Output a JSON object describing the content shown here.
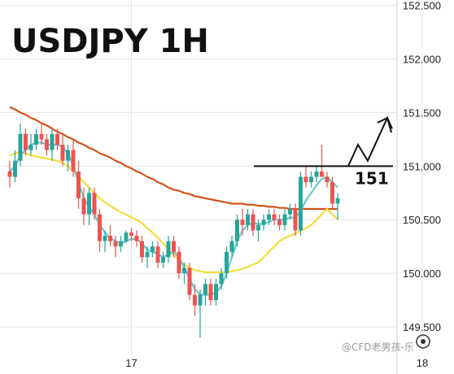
{
  "chart_data": {
    "type": "candlestick",
    "title": "USDJPY 1H",
    "y_ticks": [
      "152.500",
      "152.000",
      "151.500",
      "151.000",
      "150.500",
      "150.000",
      "149.500"
    ],
    "y_tick_values": [
      152.5,
      152.0,
      151.5,
      151.0,
      150.5,
      150.0,
      149.5
    ],
    "ylim": [
      149.25,
      152.55
    ],
    "x_ticks": [
      "17",
      "18"
    ],
    "x_tick_index": [
      23,
      78
    ],
    "grid": true,
    "colors": {
      "up": "#26a69a",
      "down": "#ef5350",
      "ma_fast": "#6cc8d0",
      "ma_mid": "#f5dc3c",
      "ma_slow": "#d2531a",
      "level": "#111111"
    },
    "level_value": 151.0,
    "level_label": "151",
    "projection_path": [
      [
        151.0,
        0
      ],
      [
        151.2,
        6
      ],
      [
        151.05,
        12
      ],
      [
        151.45,
        24
      ],
      [
        151.35,
        27
      ]
    ],
    "candles": [
      [
        150.95,
        151.05,
        150.8,
        150.9
      ],
      [
        150.9,
        151.15,
        150.85,
        151.05
      ],
      [
        151.05,
        151.4,
        151.0,
        151.3
      ],
      [
        151.3,
        151.35,
        151.1,
        151.15
      ],
      [
        151.15,
        151.3,
        151.1,
        151.2
      ],
      [
        151.2,
        151.35,
        151.15,
        151.3
      ],
      [
        151.3,
        151.4,
        151.2,
        151.25
      ],
      [
        151.25,
        151.3,
        151.1,
        151.15
      ],
      [
        151.15,
        151.35,
        151.05,
        151.3
      ],
      [
        151.3,
        151.35,
        151.15,
        151.2
      ],
      [
        151.2,
        151.3,
        151.0,
        151.05
      ],
      [
        151.05,
        151.2,
        150.95,
        151.15
      ],
      [
        151.15,
        151.25,
        150.9,
        150.95
      ],
      [
        150.95,
        151.05,
        150.6,
        150.7
      ],
      [
        150.7,
        150.8,
        150.45,
        150.55
      ],
      [
        150.55,
        150.8,
        150.45,
        150.75
      ],
      [
        150.75,
        150.8,
        150.5,
        150.55
      ],
      [
        150.55,
        150.6,
        150.2,
        150.3
      ],
      [
        150.3,
        150.4,
        150.2,
        150.35
      ],
      [
        150.35,
        150.45,
        150.25,
        150.3
      ],
      [
        150.3,
        150.35,
        150.15,
        150.25
      ],
      [
        150.25,
        150.35,
        150.2,
        150.3
      ],
      [
        150.3,
        150.4,
        150.28,
        150.38
      ],
      [
        150.38,
        150.42,
        150.3,
        150.35
      ],
      [
        150.35,
        150.4,
        150.25,
        150.3
      ],
      [
        150.3,
        150.35,
        150.1,
        150.15
      ],
      [
        150.15,
        150.25,
        150.05,
        150.2
      ],
      [
        150.2,
        150.3,
        150.15,
        150.25
      ],
      [
        150.25,
        150.3,
        150.05,
        150.1
      ],
      [
        150.1,
        150.2,
        150.05,
        150.15
      ],
      [
        150.15,
        150.35,
        150.1,
        150.3
      ],
      [
        150.3,
        150.35,
        150.15,
        150.2
      ],
      [
        150.2,
        150.25,
        149.95,
        150.0
      ],
      [
        150.0,
        150.1,
        149.9,
        150.05
      ],
      [
        150.05,
        150.1,
        149.75,
        149.8
      ],
      [
        149.8,
        149.9,
        149.6,
        149.7
      ],
      [
        149.7,
        149.85,
        149.4,
        149.8
      ],
      [
        149.8,
        149.95,
        149.7,
        149.9
      ],
      [
        149.9,
        149.95,
        149.7,
        149.75
      ],
      [
        149.75,
        149.95,
        149.7,
        149.9
      ],
      [
        149.9,
        150.05,
        149.85,
        150.0
      ],
      [
        150.0,
        150.25,
        149.95,
        150.2
      ],
      [
        150.2,
        150.35,
        150.15,
        150.3
      ],
      [
        150.3,
        150.55,
        150.25,
        150.5
      ],
      [
        150.5,
        150.6,
        150.35,
        150.45
      ],
      [
        150.45,
        150.6,
        150.4,
        150.55
      ],
      [
        150.55,
        150.6,
        150.35,
        150.4
      ],
      [
        150.4,
        150.5,
        150.3,
        150.45
      ],
      [
        150.45,
        150.55,
        150.4,
        150.5
      ],
      [
        150.5,
        150.6,
        150.45,
        150.55
      ],
      [
        150.55,
        150.6,
        150.45,
        150.5
      ],
      [
        150.5,
        150.55,
        150.4,
        150.45
      ],
      [
        150.45,
        150.6,
        150.4,
        150.55
      ],
      [
        150.55,
        150.65,
        150.5,
        150.6
      ],
      [
        150.6,
        150.65,
        150.35,
        150.4
      ],
      [
        150.4,
        150.95,
        150.35,
        150.9
      ],
      [
        150.9,
        151.0,
        150.8,
        150.85
      ],
      [
        150.85,
        150.95,
        150.8,
        150.9
      ],
      [
        150.9,
        151.0,
        150.85,
        150.95
      ],
      [
        150.95,
        151.2,
        150.9,
        150.9
      ],
      [
        150.9,
        150.95,
        150.8,
        150.85
      ],
      [
        150.85,
        150.9,
        150.6,
        150.65
      ],
      [
        150.65,
        150.75,
        150.5,
        150.7
      ]
    ],
    "ma_fast": [
      150.95,
      151.0,
      151.1,
      151.15,
      151.2,
      151.22,
      151.22,
      151.2,
      151.2,
      151.2,
      151.18,
      151.12,
      151.0,
      150.85,
      150.7,
      150.62,
      150.55,
      150.45,
      150.38,
      150.33,
      150.3,
      150.28,
      150.3,
      150.32,
      150.32,
      150.28,
      150.22,
      150.2,
      150.18,
      150.15,
      150.18,
      150.2,
      150.15,
      150.05,
      149.95,
      149.85,
      149.8,
      149.8,
      149.8,
      149.82,
      149.88,
      150.0,
      150.15,
      150.3,
      150.4,
      150.45,
      150.47,
      150.46,
      150.46,
      150.48,
      150.5,
      150.5,
      150.5,
      150.52,
      150.52,
      150.58,
      150.68,
      150.75,
      150.82,
      150.88,
      150.9,
      150.85,
      150.8
    ],
    "ma_mid": [
      151.1,
      151.12,
      151.13,
      151.12,
      151.1,
      151.09,
      151.08,
      151.07,
      151.06,
      151.05,
      151.03,
      151.0,
      150.95,
      150.9,
      150.85,
      150.8,
      150.75,
      150.7,
      150.66,
      150.63,
      150.6,
      150.57,
      150.55,
      150.52,
      150.5,
      150.47,
      150.42,
      150.38,
      150.33,
      150.28,
      150.22,
      150.17,
      150.12,
      150.08,
      150.05,
      150.03,
      150.02,
      150.01,
      150.01,
      150.01,
      150.01,
      150.01,
      150.02,
      150.03,
      150.04,
      150.06,
      150.08,
      150.1,
      150.15,
      150.2,
      150.25,
      150.3,
      150.33,
      150.35,
      150.37,
      150.4,
      150.42,
      150.45,
      150.5,
      150.55,
      150.6,
      150.55,
      150.5
    ],
    "ma_slow": [
      151.55,
      151.53,
      151.5,
      151.48,
      151.45,
      151.43,
      151.4,
      151.38,
      151.35,
      151.32,
      151.3,
      151.27,
      151.25,
      151.22,
      151.2,
      151.17,
      151.15,
      151.12,
      151.1,
      151.08,
      151.05,
      151.03,
      151.0,
      150.98,
      150.95,
      150.93,
      150.9,
      150.88,
      150.85,
      150.83,
      150.8,
      150.78,
      150.77,
      150.75,
      150.74,
      150.72,
      150.71,
      150.7,
      150.69,
      150.68,
      150.67,
      150.66,
      150.65,
      150.65,
      150.65,
      150.64,
      150.64,
      150.63,
      150.63,
      150.62,
      150.62,
      150.61,
      150.61,
      150.6,
      150.6,
      150.6,
      150.6,
      150.6,
      150.6,
      150.6,
      150.6,
      150.6,
      150.6
    ]
  },
  "watermark": "@CFD老男孩-乐"
}
